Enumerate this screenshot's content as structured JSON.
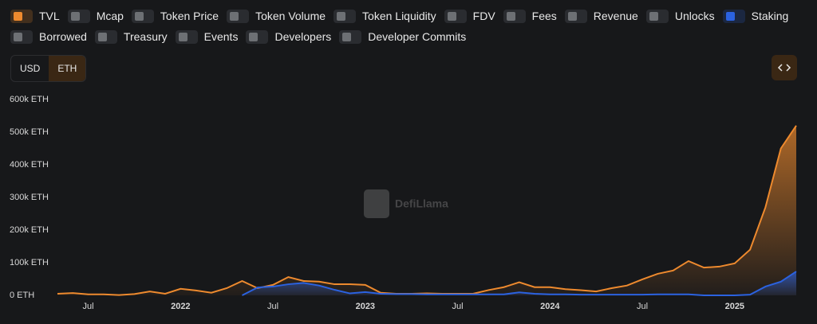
{
  "toggles": [
    {
      "label": "TVL",
      "active": true
    },
    {
      "label": "Mcap",
      "active": false
    },
    {
      "label": "Token Price",
      "active": false
    },
    {
      "label": "Token Volume",
      "active": false
    },
    {
      "label": "Token Liquidity",
      "active": false
    },
    {
      "label": "FDV",
      "active": false
    },
    {
      "label": "Fees",
      "active": false
    },
    {
      "label": "Revenue",
      "active": false
    },
    {
      "label": "Unlocks",
      "active": false
    },
    {
      "label": "Staking",
      "active": true
    },
    {
      "label": "Borrowed",
      "active": false
    },
    {
      "label": "Treasury",
      "active": false
    },
    {
      "label": "Events",
      "active": false
    },
    {
      "label": "Developers",
      "active": false
    },
    {
      "label": "Developer Commits",
      "active": false
    }
  ],
  "units": [
    "USD",
    "ETH"
  ],
  "selected_unit": "ETH",
  "watermark": "DefiLlama",
  "chart_data": {
    "type": "area",
    "categories": [
      null,
      null,
      "Jul",
      null,
      null,
      null,
      null,
      null,
      "2022",
      null,
      null,
      null,
      null,
      null,
      "Jul",
      null,
      null,
      null,
      null,
      null,
      "2023",
      null,
      null,
      null,
      null,
      null,
      "Jul",
      null,
      null,
      null,
      null,
      null,
      "2024",
      null,
      null,
      null,
      null,
      null,
      "Jul",
      null,
      null,
      null,
      null,
      null,
      "2025",
      null,
      null,
      null,
      null
    ],
    "series": [
      {
        "name": "TVL",
        "color": "#ee8a2e",
        "values": [
          5000,
          7000,
          3000,
          3000,
          1000,
          4000,
          12000,
          5000,
          20000,
          15000,
          8000,
          22000,
          44000,
          22000,
          32000,
          56000,
          44000,
          42000,
          34000,
          34000,
          32000,
          8000,
          5000,
          5000,
          6000,
          5000,
          5000,
          5000,
          16000,
          25000,
          40000,
          25000,
          25000,
          19000,
          16000,
          12000,
          22000,
          30000,
          49000,
          66000,
          76000,
          105000,
          85000,
          88000,
          98000,
          140000,
          270000,
          450000,
          520000
        ]
      },
      {
        "name": "Staking",
        "color": "#2b62e0",
        "values": [
          null,
          null,
          null,
          null,
          null,
          null,
          null,
          null,
          null,
          null,
          null,
          null,
          0,
          24000,
          27000,
          34000,
          38000,
          30000,
          17000,
          6000,
          10000,
          5000,
          4000,
          4000,
          3000,
          3000,
          3000,
          3000,
          3000,
          3000,
          9000,
          5000,
          3000,
          3000,
          2000,
          2000,
          2000,
          2000,
          2000,
          3000,
          3000,
          3000,
          0,
          0,
          0,
          2000,
          27000,
          42000,
          73000
        ]
      }
    ],
    "ylim": [
      0,
      600000
    ],
    "yticks": [
      {
        "value": 0,
        "label": "0 ETH"
      },
      {
        "value": 100000,
        "label": "100k ETH"
      },
      {
        "value": 200000,
        "label": "200k ETH"
      },
      {
        "value": 300000,
        "label": "300k ETH"
      },
      {
        "value": 400000,
        "label": "400k ETH"
      },
      {
        "value": 500000,
        "label": "500k ETH"
      },
      {
        "value": 600000,
        "label": "600k ETH"
      }
    ],
    "grid": false
  }
}
